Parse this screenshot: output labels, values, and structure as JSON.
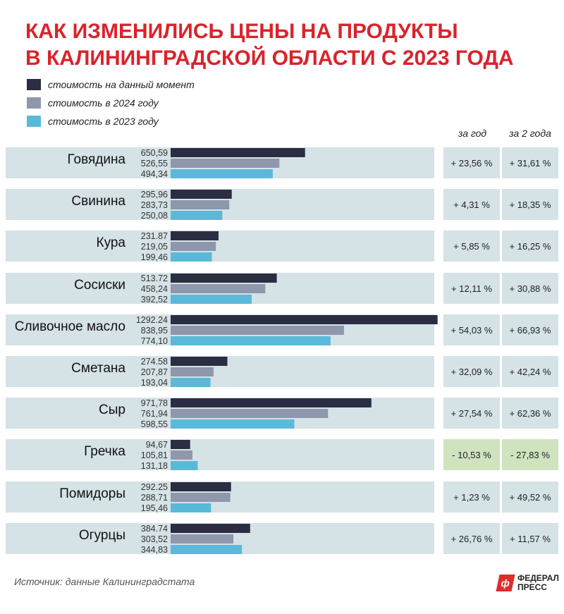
{
  "header": {
    "title_line1": "КАК ИЗМЕНИЛИСЬ ЦЕНЫ НА ПРОДУКТЫ",
    "title_line2": "В КАЛИНИНГРАДСКОЙ ОБЛАСТИ С 2023 ГОДА"
  },
  "legend": [
    {
      "label": "стоимость на данный момент",
      "color": "#2b2d42"
    },
    {
      "label": "стоимость в 2024 году",
      "color": "#8e97ab"
    },
    {
      "label": "стоимость в 2023 году",
      "color": "#5ab9d8"
    }
  ],
  "columns": {
    "year": "за год",
    "two_years": "за 2 года"
  },
  "colors": {
    "title": "#d8242c",
    "row_background": "#d5e2e6",
    "negative_background": "#cfe3bf"
  },
  "chart_data": {
    "type": "bar",
    "orientation": "horizontal",
    "categories": [
      "Говядина",
      "Свинина",
      "Кура",
      "Сосиски",
      "Сливочное масло",
      "Сметана",
      "Сыр",
      "Гречка",
      "Помидоры",
      "Огурцы"
    ],
    "series": [
      {
        "name": "стоимость на данный момент",
        "color": "#2b2d42",
        "values": [
          650.59,
          295.96,
          231.87,
          513.72,
          1292.24,
          274.58,
          971.78,
          94.67,
          292.25,
          384.74
        ],
        "labels": [
          "650,59",
          "295,96",
          "231.87",
          "513.72",
          "1292.24",
          "274.58",
          "971,78",
          "94,67",
          "292.25",
          "384.74"
        ]
      },
      {
        "name": "стоимость в 2024 году",
        "color": "#8e97ab",
        "values": [
          526.55,
          283.73,
          219.05,
          458.24,
          838.95,
          207.87,
          761.94,
          105.81,
          288.71,
          303.52
        ],
        "labels": [
          "526,55",
          "283,73",
          "219,05",
          "458,24",
          "838,95",
          "207,87",
          "761,94",
          "105,81",
          "288,71",
          "303,52"
        ]
      },
      {
        "name": "стоимость в 2023 году",
        "color": "#5ab9d8",
        "values": [
          494.34,
          250.08,
          199.46,
          392.52,
          774.1,
          193.04,
          598.55,
          131.18,
          195.46,
          344.83
        ],
        "labels": [
          "494,34",
          "250,08",
          "199,46",
          "392,52",
          "774,10",
          "193,04",
          "598,55",
          "131,18",
          "195,46",
          "344,83"
        ]
      }
    ],
    "change_year": [
      "+ 23,56 %",
      "+ 4,31 %",
      "+ 5,85 %",
      "+ 12,11 %",
      "+ 54,03 %",
      "+ 32,09 %",
      "+ 27,54 %",
      "- 10,53 %",
      "+ 1,23 %",
      "+ 26,76 %"
    ],
    "change_two_years": [
      "+ 31,61 %",
      "+ 18,35 %",
      "+ 16,25 %",
      "+ 30,88 %",
      "+ 66,93 %",
      "+ 42,24 %",
      "+ 62,36 %",
      "- 27,83 %",
      "+ 49,52 %",
      "+ 11,57 %"
    ],
    "negative_rows": [
      7
    ],
    "xlim": [
      0,
      1300
    ]
  },
  "footer": {
    "source": "Источник: данные Калининградстата",
    "logo_line1": "ФЕДЕРАЛ",
    "logo_line2": "ПРЕСС",
    "logo_mark": "ф"
  }
}
